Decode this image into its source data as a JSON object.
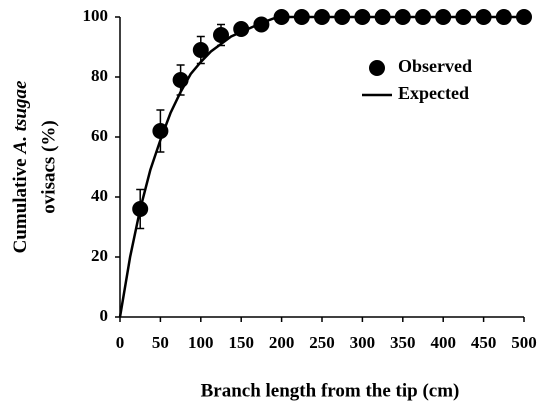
{
  "chart_data": {
    "type": "scatter",
    "y_label": [
      "Cumulative",
      "A. tsugae",
      "ovisacs (%)"
    ],
    "x_label": "Branch length from the tip (cm)",
    "xlim": [
      0,
      500
    ],
    "xticks": [
      0,
      50,
      100,
      150,
      200,
      250,
      300,
      350,
      400,
      450,
      500
    ],
    "ylim": [
      0,
      100
    ],
    "yticks": [
      0,
      20,
      40,
      60,
      80,
      100
    ],
    "legend": "upper right",
    "series": [
      {
        "name": "Observed",
        "type": "scatter",
        "color": "#000000",
        "x": [
          25,
          50,
          75,
          100,
          125,
          150,
          175,
          200,
          225,
          250,
          275,
          300,
          325,
          350,
          375,
          400,
          425,
          450,
          475,
          500
        ],
        "values": [
          36,
          62,
          79,
          89,
          94,
          96,
          97.5,
          100,
          100,
          100,
          100,
          100,
          100,
          100,
          100,
          100,
          100,
          100,
          100,
          100
        ],
        "errors": [
          6.5,
          7,
          5,
          4.5,
          3.5,
          2,
          2,
          0,
          0,
          0,
          0,
          0,
          0,
          0,
          0,
          0,
          0,
          0,
          0,
          0
        ]
      },
      {
        "name": "Expected",
        "type": "line",
        "color": "#000000",
        "x": [
          0,
          12.5,
          25,
          37.5,
          50,
          62.5,
          75,
          87.5,
          100,
          112.5,
          125,
          137.5,
          150,
          162.5,
          175,
          190,
          200,
          500
        ],
        "values": [
          0,
          20,
          36,
          49,
          59,
          68,
          75,
          81,
          85,
          88.5,
          91,
          93.5,
          95,
          96.5,
          98,
          99.5,
          100,
          100
        ]
      }
    ]
  }
}
